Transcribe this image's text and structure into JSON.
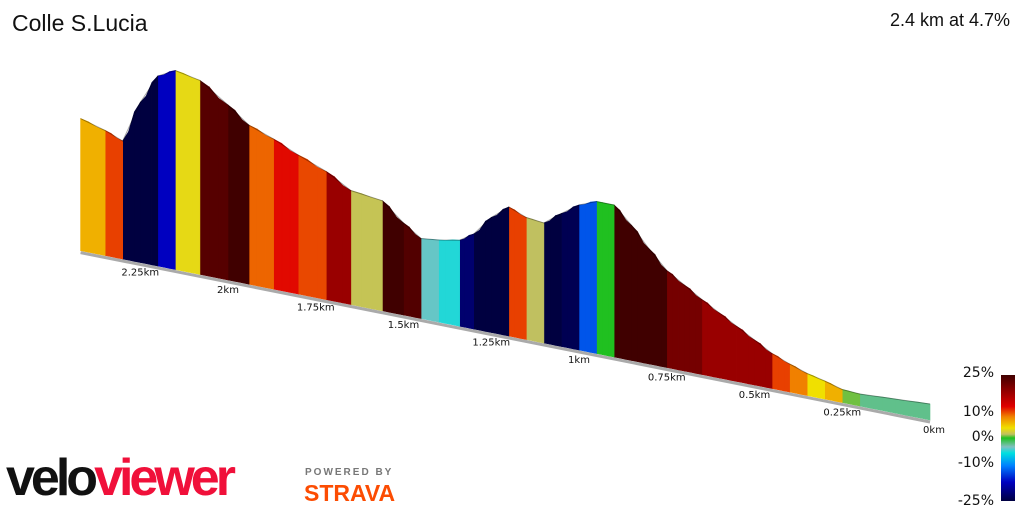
{
  "header": {
    "title": "Colle S.Lucia",
    "summary": "2.4 km at 4.7%"
  },
  "chart_data": {
    "type": "area",
    "title": "Colle S.Lucia",
    "subtitle": "2.4 km at 4.7%",
    "xlabel": "",
    "ylabel": "",
    "x_tick_labels": [
      "0km",
      "0.25km",
      "0.5km",
      "0.75km",
      "1km",
      "1.25km",
      "1.5km",
      "1.75km",
      "2km",
      "2.25km"
    ],
    "x_ticks": [
      0,
      0.25,
      0.5,
      0.75,
      1,
      1.25,
      1.5,
      1.75,
      2,
      2.25
    ],
    "xlim": [
      0,
      2.42
    ],
    "profile_km": [
      0,
      0.1,
      0.2,
      0.25,
      0.3,
      0.35,
      0.4,
      0.45,
      0.5,
      0.55,
      0.6,
      0.65,
      0.7,
      0.75,
      0.8,
      0.85,
      0.9,
      0.95,
      1.0,
      1.05,
      1.1,
      1.15,
      1.2,
      1.25,
      1.3,
      1.34,
      1.4,
      1.45,
      1.5,
      1.56,
      1.65,
      1.72,
      1.8,
      1.87,
      1.94,
      2.0,
      2.08,
      2.15,
      2.2,
      2.25,
      2.3,
      2.35,
      2.42
    ],
    "profile_relative_elevation_m": [
      16,
      14,
      12,
      13,
      18,
      22,
      28,
      35,
      45,
      55,
      65,
      75,
      86,
      97,
      115,
      135,
      152,
      152,
      145,
      133,
      120,
      122,
      129,
      115,
      95,
      86,
      82,
      80,
      92,
      110,
      114,
      128,
      139,
      150,
      159,
      175,
      194,
      199,
      190,
      160,
      118,
      125,
      132
    ],
    "color_scale": {
      "label_values": [
        "25%",
        "10%",
        "0%",
        "-10%",
        "-25%"
      ],
      "min": -25,
      "max": 25,
      "stops": [
        [
          -25,
          "#000040"
        ],
        [
          -18,
          "#0000c0"
        ],
        [
          -12,
          "#0080ff"
        ],
        [
          -8,
          "#00e0e0"
        ],
        [
          -3,
          "#80c0c0"
        ],
        [
          0,
          "#20c020"
        ],
        [
          4,
          "#c0c060"
        ],
        [
          8,
          "#f0e000"
        ],
        [
          12,
          "#f08000"
        ],
        [
          16,
          "#e00000"
        ],
        [
          25,
          "#400000"
        ]
      ]
    }
  },
  "branding": {
    "velo": "velo",
    "viewer": "viewer",
    "powered_by": "POWERED BY",
    "strava": "STRAVA"
  }
}
